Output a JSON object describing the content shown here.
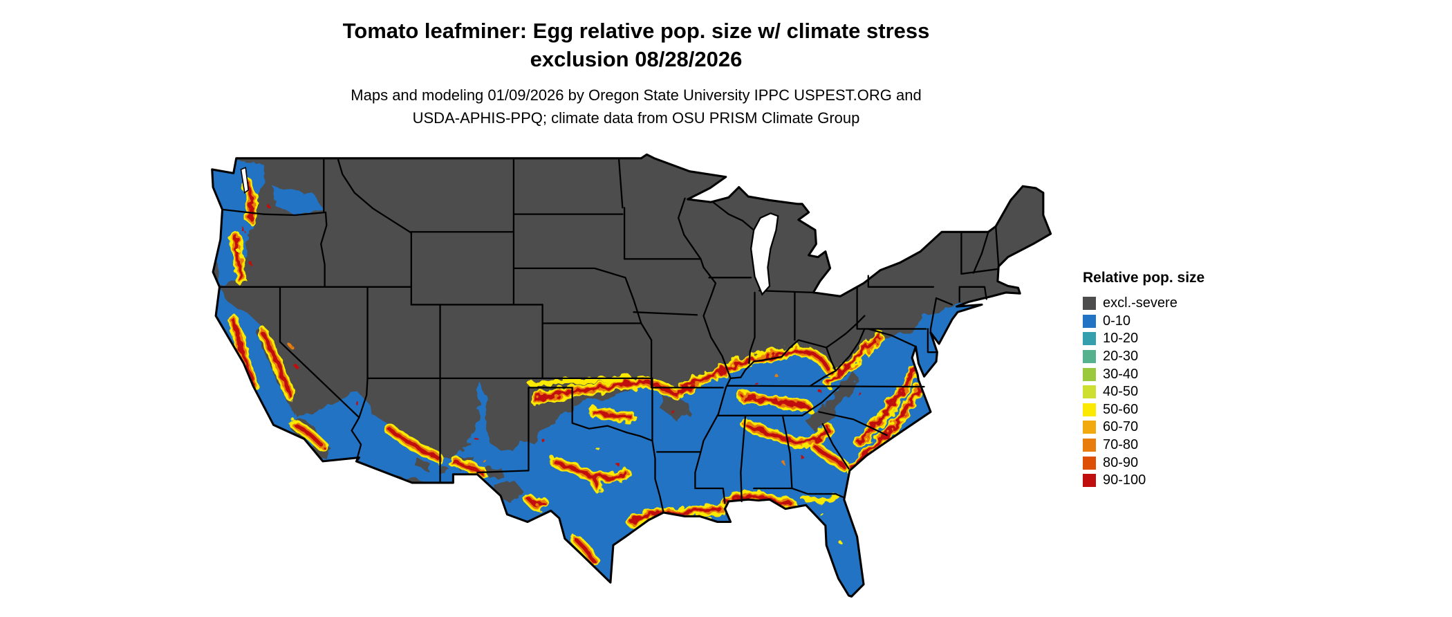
{
  "title": {
    "line1": "Tomato leafminer: Egg relative pop. size w/ climate stress",
    "line2": "exclusion 08/28/2026"
  },
  "subtitle": {
    "line1": "Maps and modeling 01/09/2026 by Oregon State University IPPC USPEST.ORG and",
    "line2": "USDA-APHIS-PPQ; climate data from OSU PRISM Climate Group"
  },
  "legend": {
    "title": "Relative pop. size",
    "items": [
      {
        "label": "excl.-severe",
        "color": "#4d4d4d"
      },
      {
        "label": "0-10",
        "color": "#2273c3"
      },
      {
        "label": "10-20",
        "color": "#359fae"
      },
      {
        "label": "20-30",
        "color": "#55b18e"
      },
      {
        "label": "30-40",
        "color": "#9ac93d"
      },
      {
        "label": "40-50",
        "color": "#cfdf32"
      },
      {
        "label": "50-60",
        "color": "#fce903"
      },
      {
        "label": "60-70",
        "color": "#f2a90d"
      },
      {
        "label": "70-80",
        "color": "#e87d0d"
      },
      {
        "label": "80-90",
        "color": "#dc4f05"
      },
      {
        "label": "90-100",
        "color": "#c00d0d"
      }
    ]
  },
  "map": {
    "region": "Continental United States",
    "base_excluded_color": "#4d4d4d",
    "base_low_pop_color": "#2273c3"
  }
}
